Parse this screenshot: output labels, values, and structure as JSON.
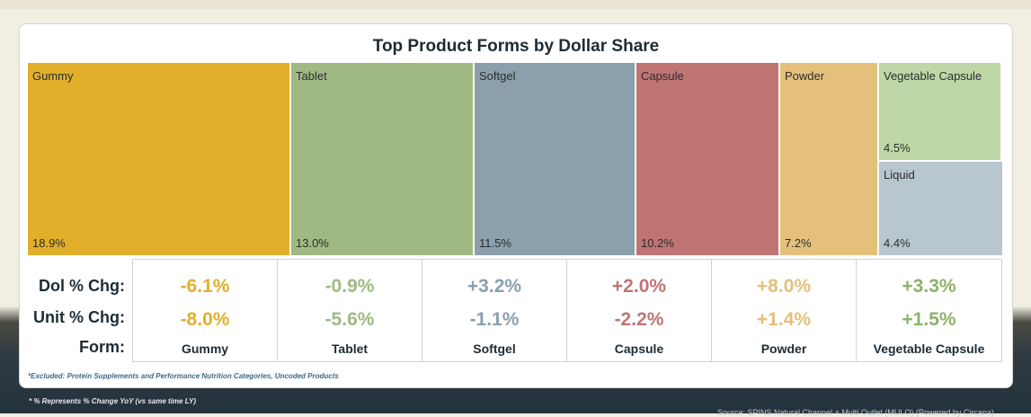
{
  "chart_data": {
    "type": "treemap",
    "title": "Top Product Forms by Dollar Share",
    "tiles": [
      {
        "label": "Gummy",
        "value_text": "18.9%",
        "value": 18.9,
        "color": "#e2af2a"
      },
      {
        "label": "Tablet",
        "value_text": "13.0%",
        "value": 13.0,
        "color": "#a0b983"
      },
      {
        "label": "Softgel",
        "value_text": "11.5%",
        "value": 11.5,
        "color": "#8ba0ac"
      },
      {
        "label": "Capsule",
        "value_text": "10.2%",
        "value": 10.2,
        "color": "#c07474"
      },
      {
        "label": "Powder",
        "value_text": "7.2%",
        "value": 7.2,
        "color": "#e4c07b"
      },
      {
        "label": "Vegetable Capsule",
        "value_text": "4.5%",
        "value": 4.5,
        "color": "#bfd6a6"
      },
      {
        "label": "Liquid",
        "value_text": "4.4%",
        "value": 4.4,
        "color": "#b8c6cf"
      }
    ],
    "change_table": {
      "row_labels": {
        "dol": "Dol % Chg:",
        "unit": "Unit % Chg:",
        "form": "Form:"
      },
      "columns": [
        {
          "form": "Gummy",
          "dol": "-6.1%",
          "unit": "-8.0%",
          "color": "#e2af2a"
        },
        {
          "form": "Tablet",
          "dol": "-0.9%",
          "unit": "-5.6%",
          "color": "#a0b983"
        },
        {
          "form": "Softgel",
          "dol": "+3.2%",
          "unit": "-1.1%",
          "color": "#8ba0ac"
        },
        {
          "form": "Capsule",
          "dol": "+2.0%",
          "unit": "-2.2%",
          "color": "#c07474"
        },
        {
          "form": "Powder",
          "dol": "+8.0%",
          "unit": "+1.4%",
          "color": "#e4c07b"
        },
        {
          "form": "Vegetable Capsule",
          "dol": "+3.3%",
          "unit": "+1.5%",
          "color": "#8fb06a"
        }
      ]
    }
  },
  "notes": {
    "excluded": "*Excluded: Protein Supplements and Performance Nutrition Categories, Uncoded Products",
    "footnote": "* % Represents % Change YoY (vs same time LY)",
    "source": "Source: SPINS Natural Channel + Multi Outlet (MULO) (Powered by Circana)"
  }
}
